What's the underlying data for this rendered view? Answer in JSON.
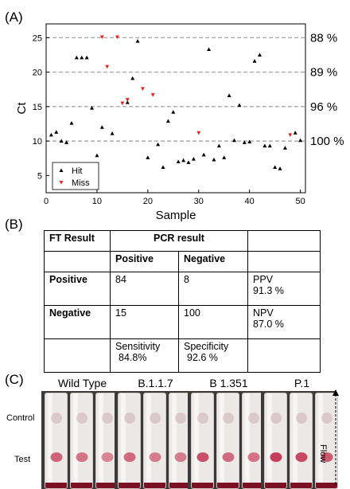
{
  "panels": {
    "a": "(A)",
    "b": "(B)",
    "c": "(C)"
  },
  "colors": {
    "hit": "#000000",
    "miss": "#e8231d",
    "grid": "#9a9a9a",
    "test_line": "#c43552",
    "base": "#7a1022"
  },
  "chart_data": {
    "type": "scatter",
    "xlabel": "Sample",
    "ylabel": "Ct",
    "xlim": [
      0,
      51
    ],
    "ylim": [
      2.5,
      27
    ],
    "xticks": [
      0,
      10,
      20,
      30,
      40,
      50
    ],
    "yticks": [
      5,
      10,
      15,
      20,
      25
    ],
    "grid": "dashed horizontal at 10, 15, 20, 25",
    "legend_position": "bottom-left",
    "series": [
      {
        "name": "Hit",
        "marker": "up-triangle",
        "points": [
          [
            1,
            10.9
          ],
          [
            2,
            11.3
          ],
          [
            3,
            10.0
          ],
          [
            4,
            9.8
          ],
          [
            5,
            12.6
          ],
          [
            6,
            22.1
          ],
          [
            7,
            22.1
          ],
          [
            8,
            22.1
          ],
          [
            9,
            14.8
          ],
          [
            10,
            7.9
          ],
          [
            11,
            12.0
          ],
          [
            13,
            11.1
          ],
          [
            16,
            15.6
          ],
          [
            17,
            19.1
          ],
          [
            18,
            24.5
          ],
          [
            20,
            7.6
          ],
          [
            22,
            9.5
          ],
          [
            23,
            6.2
          ],
          [
            24,
            12.9
          ],
          [
            25,
            14.2
          ],
          [
            26,
            7.0
          ],
          [
            27,
            7.2
          ],
          [
            28,
            6.9
          ],
          [
            29,
            7.4
          ],
          [
            31,
            8.0
          ],
          [
            32,
            23.3
          ],
          [
            33,
            7.3
          ],
          [
            34,
            9.3
          ],
          [
            35,
            7.6
          ],
          [
            36,
            16.6
          ],
          [
            37,
            10.1
          ],
          [
            38,
            15.2
          ],
          [
            39,
            9.8
          ],
          [
            40,
            9.9
          ],
          [
            41,
            21.6
          ],
          [
            42,
            22.5
          ],
          [
            43,
            9.3
          ],
          [
            44,
            9.3
          ],
          [
            45,
            6.2
          ],
          [
            46,
            6.0
          ],
          [
            47,
            9.0
          ],
          [
            49,
            11.2
          ],
          [
            50,
            10.1
          ]
        ]
      },
      {
        "name": "Miss",
        "marker": "down-triangle",
        "points": [
          [
            11,
            25.1
          ],
          [
            12,
            20.8
          ],
          [
            14,
            25.1
          ],
          [
            15,
            15.5
          ],
          [
            16,
            16.0
          ],
          [
            19,
            17.6
          ],
          [
            21,
            16.7
          ],
          [
            30,
            11.2
          ],
          [
            48,
            10.9
          ]
        ]
      }
    ],
    "right_labels": [
      {
        "y": 25,
        "text": "88 %"
      },
      {
        "y": 20,
        "text": "89 %"
      },
      {
        "y": 15,
        "text": "96 %"
      },
      {
        "y": 10,
        "text": "100 %"
      }
    ]
  },
  "table": {
    "header": {
      "ft": "FT Result",
      "pcr": "PCR result"
    },
    "sub": {
      "pos": "Positive",
      "neg": "Negative"
    },
    "rows": [
      {
        "label": "Positive",
        "pos": "84",
        "neg": "8",
        "extra1": "PPV",
        "extra2": "91.3 %"
      },
      {
        "label": "Negative",
        "pos": "15",
        "neg": "100",
        "extra1": "NPV",
        "extra2": "87.0 %"
      }
    ],
    "footer": {
      "sens1": "Sensitivity",
      "sens2": "84.8%",
      "spec1": "Specificity",
      "spec2": "92.6 %"
    }
  },
  "strips": {
    "groups": [
      {
        "label": "Wild Type",
        "tests": [
          0.75,
          0.65,
          0.55
        ]
      },
      {
        "label": "B.1.1.7",
        "tests": [
          0.7,
          0.6,
          0.6
        ]
      },
      {
        "label": "B 1.351",
        "tests": [
          0.85,
          0.7,
          0.65
        ]
      },
      {
        "label": "P.1",
        "tests": [
          0.95,
          0.9,
          0.8
        ]
      }
    ],
    "row_labels": {
      "control": "Control",
      "test": "Test"
    },
    "flow_label": "Flow"
  }
}
